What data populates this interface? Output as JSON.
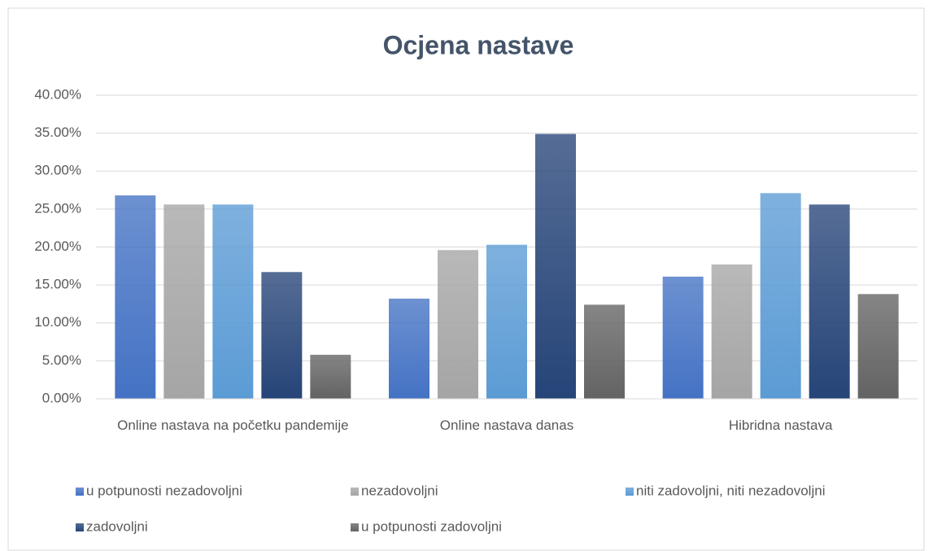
{
  "chart_data": {
    "type": "bar",
    "title": "Ocjena nastave",
    "categories": [
      "Online nastava na početku pandemije",
      "Online nastava danas",
      "Hibridna nastava"
    ],
    "series": [
      {
        "name": "u potpunosti nezadovoljni",
        "color": "#4472c4",
        "values": [
          26.8,
          13.2,
          16.1
        ]
      },
      {
        "name": "nezadovoljni",
        "color": "#a5a5a5",
        "values": [
          25.6,
          19.6,
          17.7
        ]
      },
      {
        "name": "niti zadovoljni, niti nezadovoljni",
        "color": "#5b9bd5",
        "values": [
          25.6,
          20.3,
          27.1
        ]
      },
      {
        "name": "zadovoljni",
        "color": "#264478",
        "values": [
          16.7,
          34.9,
          25.6
        ]
      },
      {
        "name": "u potpunosti zadovoljni",
        "color": "#636363",
        "values": [
          5.8,
          12.4,
          13.8
        ]
      }
    ],
    "ylim": [
      0,
      40
    ],
    "yticks": [
      {
        "value": 0,
        "label": "0.00%"
      },
      {
        "value": 5,
        "label": "5.00%"
      },
      {
        "value": 10,
        "label": "10.00%"
      },
      {
        "value": 15,
        "label": "15.00%"
      },
      {
        "value": 20,
        "label": "20.00%"
      },
      {
        "value": 25,
        "label": "25.00%"
      },
      {
        "value": 30,
        "label": "30.00%"
      },
      {
        "value": 35,
        "label": "35.00%"
      },
      {
        "value": 40,
        "label": "40.00%"
      }
    ],
    "grid": true,
    "legend": "bottom"
  }
}
